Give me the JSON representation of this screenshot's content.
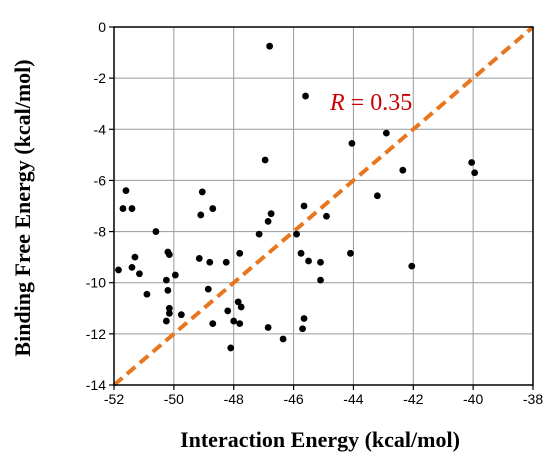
{
  "chart_data": {
    "type": "scatter",
    "xlabel": "Interaction Energy (kcal/mol)",
    "ylabel": "Binding Free Energy (kcal/mol)",
    "xlim": [
      -52,
      -38
    ],
    "ylim": [
      -14,
      0
    ],
    "xticks": [
      -52,
      -50,
      -48,
      -46,
      -44,
      -42,
      -40,
      -38
    ],
    "yticks": [
      0,
      -2,
      -4,
      -6,
      -8,
      -10,
      -12,
      -14
    ],
    "grid": true,
    "annotation": {
      "prefix": "R",
      "text": " = 0.35",
      "color": "#cc0000"
    },
    "fit_line": {
      "from": [
        -52,
        -14
      ],
      "to": [
        -38,
        0
      ],
      "style": "dashed",
      "color": "#e8761f"
    },
    "point_color": "#000000",
    "points": [
      [
        -51.6,
        -6.4
      ],
      [
        -51.7,
        -7.1
      ],
      [
        -51.4,
        -7.1
      ],
      [
        -51.3,
        -9.0
      ],
      [
        -51.85,
        -9.5
      ],
      [
        -51.4,
        -9.4
      ],
      [
        -51.15,
        -9.65
      ],
      [
        -50.9,
        -10.45
      ],
      [
        -50.6,
        -8.0
      ],
      [
        -50.2,
        -8.8
      ],
      [
        -50.15,
        -8.9
      ],
      [
        -49.95,
        -9.7
      ],
      [
        -50.25,
        -9.9
      ],
      [
        -50.2,
        -10.3
      ],
      [
        -50.15,
        -11.0
      ],
      [
        -50.15,
        -11.2
      ],
      [
        -50.25,
        -11.5
      ],
      [
        -49.75,
        -11.25
      ],
      [
        -49.05,
        -6.45
      ],
      [
        -49.1,
        -7.35
      ],
      [
        -48.7,
        -7.1
      ],
      [
        -49.15,
        -9.05
      ],
      [
        -48.8,
        -9.2
      ],
      [
        -48.25,
        -9.2
      ],
      [
        -48.85,
        -10.25
      ],
      [
        -48.7,
        -11.6
      ],
      [
        -48.2,
        -11.1
      ],
      [
        -48.0,
        -11.5
      ],
      [
        -48.1,
        -12.55
      ],
      [
        -47.8,
        -8.85
      ],
      [
        -47.85,
        -10.75
      ],
      [
        -47.75,
        -10.95
      ],
      [
        -47.8,
        -11.6
      ],
      [
        -47.15,
        -8.1
      ],
      [
        -46.85,
        -7.6
      ],
      [
        -46.75,
        -7.3
      ],
      [
        -46.85,
        -11.75
      ],
      [
        -46.35,
        -12.2
      ],
      [
        -46.8,
        -0.75
      ],
      [
        -46.95,
        -5.2
      ],
      [
        -45.9,
        -8.1
      ],
      [
        -45.75,
        -8.85
      ],
      [
        -45.5,
        -9.15
      ],
      [
        -45.1,
        -9.2
      ],
      [
        -45.1,
        -9.9
      ],
      [
        -45.65,
        -11.4
      ],
      [
        -45.7,
        -11.8
      ],
      [
        -45.6,
        -2.7
      ],
      [
        -45.65,
        -7.0
      ],
      [
        -44.9,
        -7.4
      ],
      [
        -44.05,
        -4.55
      ],
      [
        -44.1,
        -8.85
      ],
      [
        -43.2,
        -6.6
      ],
      [
        -42.9,
        -4.15
      ],
      [
        -42.35,
        -5.6
      ],
      [
        -42.05,
        -9.35
      ],
      [
        -40.05,
        -5.3
      ],
      [
        -39.95,
        -5.7
      ]
    ]
  }
}
